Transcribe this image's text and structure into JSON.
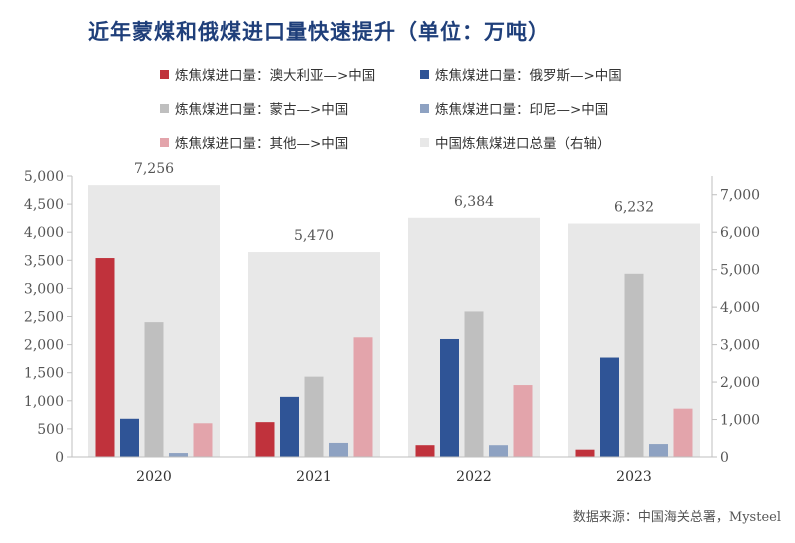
{
  "title": "近年蒙煤和俄煤进口量快速提升（单位：万吨）",
  "source": "数据来源：中国海关总署，Mysteel",
  "chart_data": {
    "type": "bar",
    "categories": [
      "2020",
      "2021",
      "2022",
      "2023"
    ],
    "series": [
      {
        "name": "炼焦煤进口量：澳大利亚—>中国",
        "color": "#c0323c",
        "values": [
          3540,
          620,
          210,
          130
        ]
      },
      {
        "name": "炼焦煤进口量：俄罗斯—>中国",
        "color": "#2f5496",
        "values": [
          680,
          1070,
          2100,
          1770
        ]
      },
      {
        "name": "炼焦煤进口量：蒙古—>中国",
        "color": "#bfbfbf",
        "values": [
          2400,
          1430,
          2590,
          3260
        ]
      },
      {
        "name": "炼焦煤进口量：印尼—>中国",
        "color": "#8ea2c2",
        "values": [
          70,
          250,
          210,
          230
        ]
      },
      {
        "name": "炼焦煤进口量：其他—>中国",
        "color": "#e3a4ab",
        "values": [
          600,
          2130,
          1280,
          860
        ]
      }
    ],
    "total_series": {
      "name": "中国炼焦煤进口总量（右轴）",
      "color": "#e8e8e8",
      "values": [
        7256,
        5470,
        6384,
        6232
      ],
      "labels": [
        "7,256",
        "5,470",
        "6,384",
        "6,232"
      ]
    },
    "left_axis": {
      "min": 0,
      "max": 5000,
      "ticks": [
        "0",
        "500",
        "1,000",
        "1,500",
        "2,000",
        "2,500",
        "3,000",
        "3,500",
        "4,000",
        "4,500",
        "5,000"
      ]
    },
    "right_axis": {
      "min": 0,
      "max": 7500,
      "ticks": [
        "0",
        "1,000",
        "2,000",
        "3,000",
        "4,000",
        "5,000",
        "6,000",
        "7,000"
      ]
    }
  }
}
